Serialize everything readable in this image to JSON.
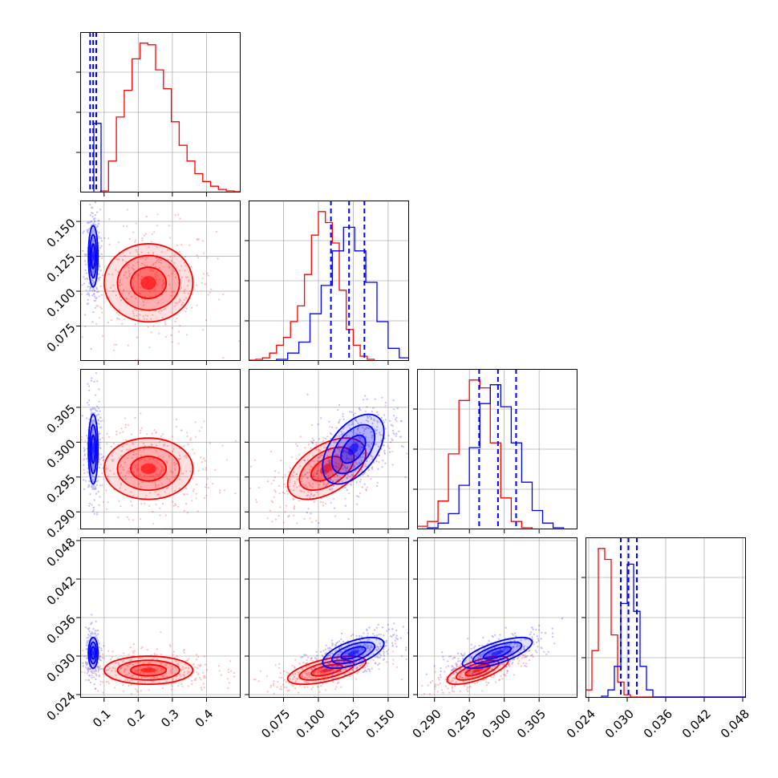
{
  "chart_data": {
    "type": "corner",
    "title": "",
    "grid": true,
    "legend": "none",
    "parameters": [
      {
        "index": 0,
        "range": [
          0.03,
          0.5
        ],
        "ticks": [
          0.1,
          0.2,
          0.3,
          0.4
        ],
        "tick_labels": [
          "0.1",
          "0.2",
          "0.3",
          "0.4"
        ]
      },
      {
        "index": 1,
        "range": [
          0.05,
          0.165
        ],
        "ticks": [
          0.075,
          0.1,
          0.125,
          0.15
        ],
        "tick_labels": [
          "0.075",
          "0.100",
          "0.125",
          "0.150"
        ]
      },
      {
        "index": 2,
        "range": [
          0.2875,
          0.3105
        ],
        "ticks": [
          0.29,
          0.295,
          0.3,
          0.305
        ],
        "tick_labels": [
          "0.290",
          "0.295",
          "0.300",
          "0.305"
        ]
      },
      {
        "index": 3,
        "range": [
          0.0235,
          0.0485
        ],
        "ticks": [
          0.024,
          0.03,
          0.036,
          0.042,
          0.048
        ],
        "tick_labels": [
          "0.024",
          "0.030",
          "0.036",
          "0.042",
          "0.048"
        ]
      }
    ],
    "series": [
      {
        "color": "#ff0000",
        "mean": [
          0.23,
          0.106,
          0.2962,
          0.0278
        ],
        "std": [
          0.065,
          0.014,
          0.0022,
          0.0011
        ],
        "corr": [
          [
            1,
            0,
            0,
            0
          ],
          [
            0,
            1,
            0.5,
            0.6
          ],
          [
            0,
            0.5,
            1,
            0.7
          ],
          [
            0,
            0.6,
            0.7,
            1
          ]
        ],
        "quantiles": null
      },
      {
        "color": "#0000ff",
        "mean": [
          0.068,
          0.125,
          0.299,
          0.0305
        ],
        "std": [
          0.007,
          0.011,
          0.0025,
          0.0012
        ],
        "corr": [
          [
            1,
            0,
            0,
            0
          ],
          [
            0,
            1,
            0.5,
            0.6
          ],
          [
            0,
            0.5,
            1,
            0.7
          ],
          [
            0,
            0.6,
            0.7,
            1
          ]
        ],
        "quantiles": [
          [
            0.059,
            0.068,
            0.077
          ],
          [
            0.109,
            0.122,
            0.133
          ],
          [
            0.2964,
            0.2991,
            0.3017
          ],
          [
            0.029,
            0.0302,
            0.0315
          ]
        ]
      }
    ],
    "histograms": [
      {
        "param": 0,
        "series": [
          {
            "color": "#ff0000",
            "bins": [
              0.09,
              0.113,
              0.136,
              0.159,
              0.182,
              0.205,
              0.228,
              0.251,
              0.274,
              0.297,
              0.32,
              0.343,
              0.366,
              0.389,
              0.412,
              0.435,
              0.458,
              0.481,
              0.5
            ],
            "counts": [
              0.01,
              0.2,
              0.48,
              0.65,
              0.85,
              0.95,
              0.94,
              0.78,
              0.66,
              0.45,
              0.3,
              0.2,
              0.12,
              0.07,
              0.04,
              0.02,
              0.01,
              0.005
            ]
          },
          {
            "color": "#0000ff",
            "bins": [
              0.03,
              0.07,
              0.091,
              0.1
            ],
            "counts": [
              0.0,
              0.44,
              0.0
            ]
          }
        ]
      },
      {
        "param": 1,
        "series": [
          {
            "color": "#ff0000",
            "bins": [
              0.05,
              0.055,
              0.06,
              0.065,
              0.07,
              0.075,
              0.08,
              0.085,
              0.09,
              0.095,
              0.1,
              0.105,
              0.11,
              0.115,
              0.12,
              0.125,
              0.13,
              0.135,
              0.14
            ],
            "counts": [
              0.005,
              0.01,
              0.02,
              0.05,
              0.1,
              0.15,
              0.25,
              0.35,
              0.55,
              0.8,
              0.95,
              0.88,
              0.75,
              0.45,
              0.2,
              0.1,
              0.03,
              0.01
            ]
          },
          {
            "color": "#0000ff",
            "bins": [
              0.07,
              0.078,
              0.086,
              0.094,
              0.102,
              0.11,
              0.118,
              0.126,
              0.134,
              0.142,
              0.15,
              0.158,
              0.165
            ],
            "counts": [
              0.01,
              0.05,
              0.12,
              0.3,
              0.48,
              0.7,
              0.85,
              0.7,
              0.5,
              0.25,
              0.08,
              0.02
            ]
          }
        ]
      },
      {
        "param": 2,
        "series": [
          {
            "color": "#ff0000",
            "bins": [
              0.2875,
              0.289,
              0.2905,
              0.292,
              0.2935,
              0.295,
              0.2965,
              0.298,
              0.2995,
              0.301,
              0.3025,
              0.304
            ],
            "counts": [
              0.02,
              0.05,
              0.18,
              0.48,
              0.82,
              0.95,
              0.9,
              0.55,
              0.2,
              0.05,
              0.01
            ]
          },
          {
            "color": "#0000ff",
            "bins": [
              0.289,
              0.2905,
              0.292,
              0.2935,
              0.295,
              0.2965,
              0.298,
              0.2995,
              0.301,
              0.3025,
              0.304,
              0.3055,
              0.307,
              0.3085
            ],
            "counts": [
              0.01,
              0.04,
              0.1,
              0.28,
              0.52,
              0.8,
              0.92,
              0.78,
              0.55,
              0.3,
              0.12,
              0.04,
              0.01
            ]
          }
        ]
      },
      {
        "param": 3,
        "series": [
          {
            "color": "#ff0000",
            "bins": [
              0.0235,
              0.0245,
              0.0255,
              0.0265,
              0.0275,
              0.0285,
              0.0295,
              0.0305,
              0.0485
            ],
            "counts": [
              0.05,
              0.3,
              0.95,
              0.88,
              0.4,
              0.1,
              0.02,
              0.005
            ]
          },
          {
            "color": "#0000ff",
            "bins": [
              0.026,
              0.027,
              0.028,
              0.029,
              0.03,
              0.031,
              0.032,
              0.033,
              0.034,
              0.0485
            ],
            "counts": [
              0.01,
              0.05,
              0.2,
              0.6,
              0.85,
              0.55,
              0.2,
              0.05,
              0.005
            ]
          }
        ]
      }
    ]
  }
}
